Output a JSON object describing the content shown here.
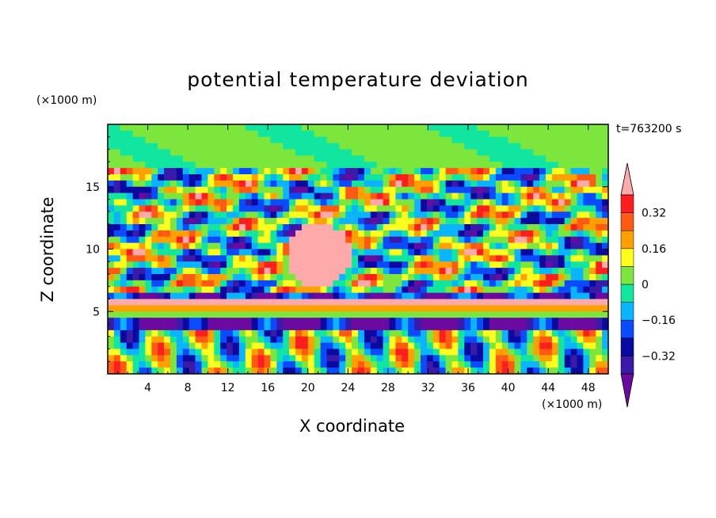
{
  "chart_data": {
    "type": "heatmap",
    "title": "potential temperature deviation",
    "xlabel": "X coordinate",
    "ylabel": "Z coordinate",
    "x_unit": "(×1000 m)",
    "y_unit": "(×1000 m)",
    "time_label": "t=763200 s",
    "xlim": [
      0,
      50
    ],
    "ylim": [
      0,
      20
    ],
    "x_ticks": [
      4,
      8,
      12,
      16,
      20,
      24,
      28,
      32,
      36,
      40,
      44,
      48
    ],
    "y_ticks": [
      5,
      10,
      15
    ],
    "colorbar": {
      "levels": [
        -0.4,
        -0.32,
        -0.24,
        -0.16,
        -0.08,
        0,
        0.08,
        0.16,
        0.24,
        0.32,
        0.4
      ],
      "tick_labels": [
        "0.32",
        "0.16",
        "0",
        "−0.16",
        "−0.32"
      ],
      "tick_values": [
        0.32,
        0.16,
        0,
        -0.16,
        -0.32
      ],
      "colors": [
        "#6a0aa0",
        "#3a1aa8",
        "#0a0aa0",
        "#0a4bff",
        "#0ab4ff",
        "#10e6a0",
        "#7ce63c",
        "#ffff1e",
        "#ffa000",
        "#ff5a14",
        "#ff1e1e",
        "#ffaaaa"
      ]
    }
  }
}
